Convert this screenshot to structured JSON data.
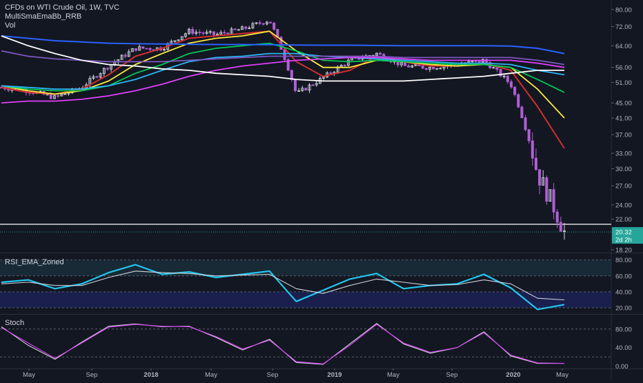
{
  "header": {
    "symbol_line": "CFDs on WTI Crude Oil, 1W, TVC",
    "indicator1": "MultiSmaEmaBb_RRB",
    "indicator2": "Vol"
  },
  "rsi_label": "RSI_EMA_Zoned",
  "stoch_label": "Stoch",
  "colors": {
    "background": "#131722",
    "up_candle": "#d1d4dc",
    "down_candle": "#b15fd6",
    "text": "#d1d4dc",
    "rsi": "#22c7f0",
    "rsi_signal": "#d1d4dc",
    "stoch_k": "#d1d4dc",
    "stoch_d": "#e040fb",
    "price_tag": "#26a69a"
  },
  "price_axis": {
    "ticks": [
      "80.00",
      "72.00",
      "64.00",
      "56.00",
      "51.00",
      "45.00",
      "41.00",
      "37.00",
      "33.00",
      "30.00",
      "27.00",
      "24.00",
      "22.00",
      "18.20"
    ],
    "scale": "log"
  },
  "last_price": "20.32",
  "countdown": "2d 2h",
  "rsi_axis": {
    "ticks": [
      "80.00",
      "60.00",
      "40.00",
      "20.00"
    ]
  },
  "stoch_axis": {
    "ticks": [
      "80.00",
      "40.00",
      "0.00"
    ]
  },
  "time_axis": {
    "ticks": [
      "May",
      "Sep",
      "2018",
      "May",
      "Sep",
      "2019",
      "May",
      "Sep",
      "2020",
      "May"
    ]
  },
  "chart_data": [
    {
      "type": "candlestick",
      "title": "CFDs on WTI Crude Oil, 1W, TVC",
      "ylim": [
        18.2,
        82
      ],
      "yscale": "log",
      "x": [
        "2017-03",
        "2017-05",
        "2017-07",
        "2017-09",
        "2017-11",
        "2018-01",
        "2018-03",
        "2018-05",
        "2018-07",
        "2018-09",
        "2018-10",
        "2018-12",
        "2019-01",
        "2019-03",
        "2019-05",
        "2019-07",
        "2019-09",
        "2019-11",
        "2020-01",
        "2020-02",
        "2020-03",
        "2020-04"
      ],
      "close_approx": [
        49.5,
        48.5,
        46.5,
        49.5,
        56.5,
        63.0,
        63.0,
        70.0,
        68.5,
        71.0,
        75.0,
        47.5,
        52.5,
        58.5,
        61.0,
        56.5,
        56.0,
        57.0,
        58.5,
        50.5,
        29.0,
        20.3
      ],
      "series": [
        {
          "name": "SMA/EMA red",
          "color": "#d32f2f",
          "values": [
            49.5,
            48,
            47.5,
            49,
            53.5,
            60,
            63,
            67,
            68,
            69,
            70,
            58,
            53,
            55,
            60,
            58,
            56.5,
            56.5,
            57.5,
            55,
            44,
            34
          ]
        },
        {
          "name": "SMA/EMA yellow",
          "color": "#ffeb3b",
          "values": [
            50,
            48.5,
            47.5,
            48.5,
            51.5,
            57,
            61,
            65,
            67,
            68,
            70,
            62,
            56,
            56,
            58.5,
            58,
            57,
            56.5,
            57,
            56,
            49,
            41
          ]
        },
        {
          "name": "SMA/EMA green",
          "color": "#00c853",
          "values": [
            50,
            49,
            48.5,
            48.5,
            50,
            54,
            57,
            61,
            63,
            64,
            65,
            62,
            58.5,
            58,
            58.5,
            58,
            57.5,
            57,
            57,
            56,
            52,
            48
          ]
        },
        {
          "name": "SMA/EMA cyan",
          "color": "#29b6f6",
          "values": [
            50,
            49.5,
            49,
            49,
            50,
            52,
            55,
            58,
            59.5,
            60,
            61,
            61,
            60,
            59.5,
            59,
            58.5,
            58,
            57.5,
            57.5,
            57,
            55,
            53.5
          ]
        },
        {
          "name": "SMA/EMA magenta",
          "color": "#e040fb",
          "values": [
            45,
            45.5,
            45.5,
            46,
            47,
            48.5,
            50.5,
            53,
            55,
            56.5,
            57.5,
            58.5,
            59,
            59.5,
            59.5,
            59,
            58.5,
            58.5,
            58.5,
            58.5,
            57.5,
            56
          ]
        },
        {
          "name": "SMA/EMA purple",
          "color": "#7e57c2",
          "values": [
            62,
            60,
            59,
            58.5,
            58,
            58,
            58,
            58.5,
            59,
            59.5,
            60,
            60,
            60,
            60,
            60,
            59.5,
            59.5,
            59.5,
            59.5,
            59.5,
            58.5,
            57
          ]
        },
        {
          "name": "SMA/EMA blue",
          "color": "#2962ff",
          "values": [
            68,
            67,
            66,
            65.5,
            65,
            64.8,
            64.7,
            64.6,
            64.5,
            64.5,
            64.4,
            64.3,
            64.2,
            64.2,
            64.1,
            64,
            64,
            64,
            64,
            63.9,
            63,
            61
          ]
        },
        {
          "name": "SMA/EMA white",
          "color": "#ffffff",
          "values": [
            68,
            64,
            61,
            58.5,
            57,
            56.5,
            55.5,
            55,
            54,
            53.5,
            53,
            52,
            51.5,
            51.5,
            51.5,
            51.5,
            52,
            52.5,
            53,
            54,
            55,
            55
          ]
        }
      ],
      "horizontal_line": 21.3
    },
    {
      "type": "line",
      "title": "RSI_EMA_Zoned",
      "ylim": [
        14,
        84
      ],
      "zones": [
        20,
        40,
        60,
        80
      ],
      "x": [
        "2017-03",
        "2017-05",
        "2017-07",
        "2017-09",
        "2017-11",
        "2018-01",
        "2018-03",
        "2018-05",
        "2018-07",
        "2018-09",
        "2018-10",
        "2018-12",
        "2019-01",
        "2019-03",
        "2019-05",
        "2019-07",
        "2019-09",
        "2019-11",
        "2020-01",
        "2020-02",
        "2020-03",
        "2020-04"
      ],
      "series": [
        {
          "name": "RSI",
          "values": [
            52,
            55,
            44,
            50,
            64,
            74,
            62,
            65,
            58,
            62,
            66,
            28,
            42,
            56,
            63,
            44,
            48,
            50,
            62,
            45,
            18,
            24
          ]
        },
        {
          "name": "Signal",
          "values": [
            50,
            52,
            48,
            48,
            58,
            66,
            64,
            63,
            60,
            61,
            62,
            44,
            38,
            48,
            56,
            52,
            48,
            49,
            55,
            50,
            32,
            30
          ]
        }
      ]
    },
    {
      "type": "line",
      "title": "Stoch",
      "ylim": [
        -2,
        102
      ],
      "x": [
        "2017-03",
        "2017-05",
        "2017-07",
        "2017-09",
        "2017-11",
        "2018-01",
        "2018-03",
        "2018-05",
        "2018-07",
        "2018-09",
        "2018-10",
        "2018-12",
        "2019-01",
        "2019-03",
        "2019-05",
        "2019-07",
        "2019-09",
        "2019-11",
        "2020-01",
        "2020-02",
        "2020-03",
        "2020-04"
      ],
      "series": [
        {
          "name": "%K",
          "values": [
            85,
            45,
            15,
            52,
            86,
            91,
            85,
            86,
            62,
            35,
            58,
            8,
            4,
            48,
            92,
            48,
            28,
            40,
            74,
            22,
            6,
            6
          ]
        },
        {
          "name": "%D",
          "values": [
            83,
            50,
            17,
            50,
            84,
            90,
            86,
            85,
            64,
            37,
            56,
            10,
            5,
            45,
            90,
            50,
            30,
            40,
            72,
            24,
            7,
            6
          ]
        }
      ]
    }
  ]
}
